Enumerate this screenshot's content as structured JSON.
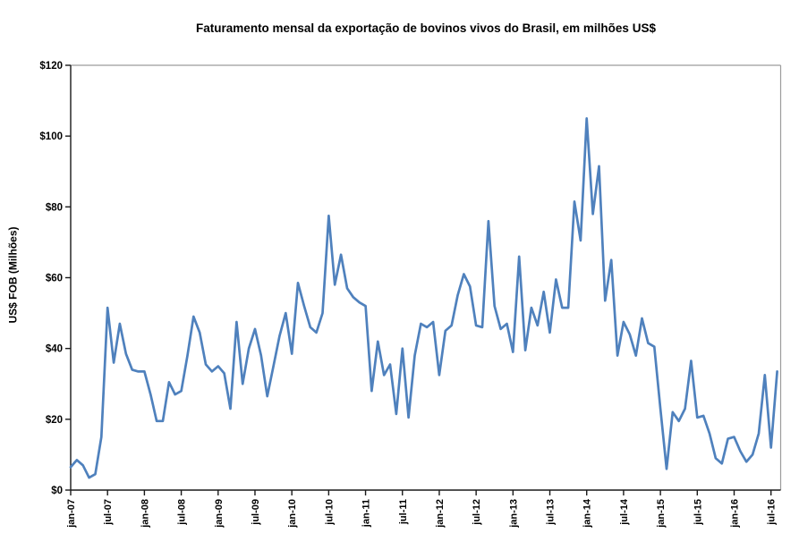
{
  "chart": {
    "title": "Faturamento mensal da exportação de bovinos vivos do Brasil, em milhões US$",
    "y_axis_title": "US$ FOB (Milhões)"
  },
  "chart_data": {
    "type": "line",
    "title": "Faturamento mensal da exportação de bovinos vivos do Brasil, em milhões US$",
    "xlabel": "",
    "ylabel": "US$ FOB (Milhões)",
    "ylim": [
      0,
      120
    ],
    "y_tick_step": 20,
    "y_tick_labels": [
      "$0",
      "$20",
      "$40",
      "$60",
      "$80",
      "$100",
      "$120"
    ],
    "x_tick_labels": [
      "jan-07",
      "jul-07",
      "jan-08",
      "jul-08",
      "jan-09",
      "jul-09",
      "jan-10",
      "jul-10",
      "jan-11",
      "jul-11",
      "jan-12",
      "jul-12",
      "jan-13",
      "jul-13",
      "jan-14",
      "jul-14",
      "jan-15",
      "jul-15",
      "jan-16",
      "jul-16"
    ],
    "x_tick_interval_months": 6,
    "grid": false,
    "legend": "none",
    "line_color": "#4F81BD",
    "axis_color": "#1a1a1a",
    "plot_border_color": "#9c9c9c",
    "x_months": [
      "jan-07",
      "fev-07",
      "mar-07",
      "abr-07",
      "mai-07",
      "jun-07",
      "jul-07",
      "ago-07",
      "set-07",
      "out-07",
      "nov-07",
      "dez-07",
      "jan-08",
      "fev-08",
      "mar-08",
      "abr-08",
      "mai-08",
      "jun-08",
      "jul-08",
      "ago-08",
      "set-08",
      "out-08",
      "nov-08",
      "dez-08",
      "jan-09",
      "fev-09",
      "mar-09",
      "abr-09",
      "mai-09",
      "jun-09",
      "jul-09",
      "ago-09",
      "set-09",
      "out-09",
      "nov-09",
      "dez-09",
      "jan-10",
      "fev-10",
      "mar-10",
      "abr-10",
      "mai-10",
      "jun-10",
      "jul-10",
      "ago-10",
      "set-10",
      "out-10",
      "nov-10",
      "dez-10",
      "jan-11",
      "fev-11",
      "mar-11",
      "abr-11",
      "mai-11",
      "jun-11",
      "jul-11",
      "ago-11",
      "set-11",
      "out-11",
      "nov-11",
      "dez-11",
      "jan-12",
      "fev-12",
      "mar-12",
      "abr-12",
      "mai-12",
      "jun-12",
      "jul-12",
      "ago-12",
      "set-12",
      "out-12",
      "nov-12",
      "dez-12",
      "jan-13",
      "fev-13",
      "mar-13",
      "abr-13",
      "mai-13",
      "jun-13",
      "jul-13",
      "ago-13",
      "set-13",
      "out-13",
      "nov-13",
      "dez-13",
      "jan-14",
      "fev-14",
      "mar-14",
      "abr-14",
      "mai-14",
      "jun-14",
      "jul-14",
      "ago-14",
      "set-14",
      "out-14",
      "nov-14",
      "dez-14",
      "jan-15",
      "fev-15",
      "mar-15",
      "abr-15",
      "mai-15",
      "jun-15",
      "jul-15",
      "ago-15",
      "set-15",
      "out-15",
      "nov-15",
      "dez-15",
      "jan-16",
      "fev-16",
      "mar-16",
      "abr-16",
      "mai-16",
      "jun-16",
      "jul-16",
      "ago-16"
    ],
    "values": [
      6.5,
      8.5,
      7,
      3.5,
      4.5,
      15,
      51.5,
      36,
      47,
      38.5,
      34,
      33.5,
      33.5,
      27,
      19.5,
      19.5,
      30.5,
      27,
      28,
      38,
      49,
      44.5,
      35.5,
      33.5,
      35,
      33,
      23,
      47.5,
      30,
      40,
      45.5,
      38,
      26.5,
      35,
      43.5,
      50,
      38.5,
      58.5,
      52,
      46,
      44.5,
      50,
      77.5,
      58,
      66.5,
      57,
      54.5,
      53,
      52,
      28,
      42,
      32.5,
      35.5,
      21.5,
      40,
      20.5,
      38,
      47,
      46,
      47.5,
      32.5,
      45,
      46.5,
      55,
      61,
      57.5,
      46.5,
      46,
      76,
      52,
      45.5,
      47,
      39,
      66,
      39.5,
      51.5,
      46.5,
      56,
      44.5,
      59.5,
      51.5,
      51.5,
      81.5,
      70.5,
      105,
      78,
      91.5,
      53.5,
      65,
      38,
      47.5,
      44,
      38,
      48.5,
      41.5,
      40.5,
      23,
      6,
      22,
      19.5,
      23,
      36.5,
      20.5,
      21,
      16,
      9,
      7.5,
      14.5,
      15,
      11,
      8,
      10,
      16,
      32.5,
      12,
      33.5
    ]
  }
}
